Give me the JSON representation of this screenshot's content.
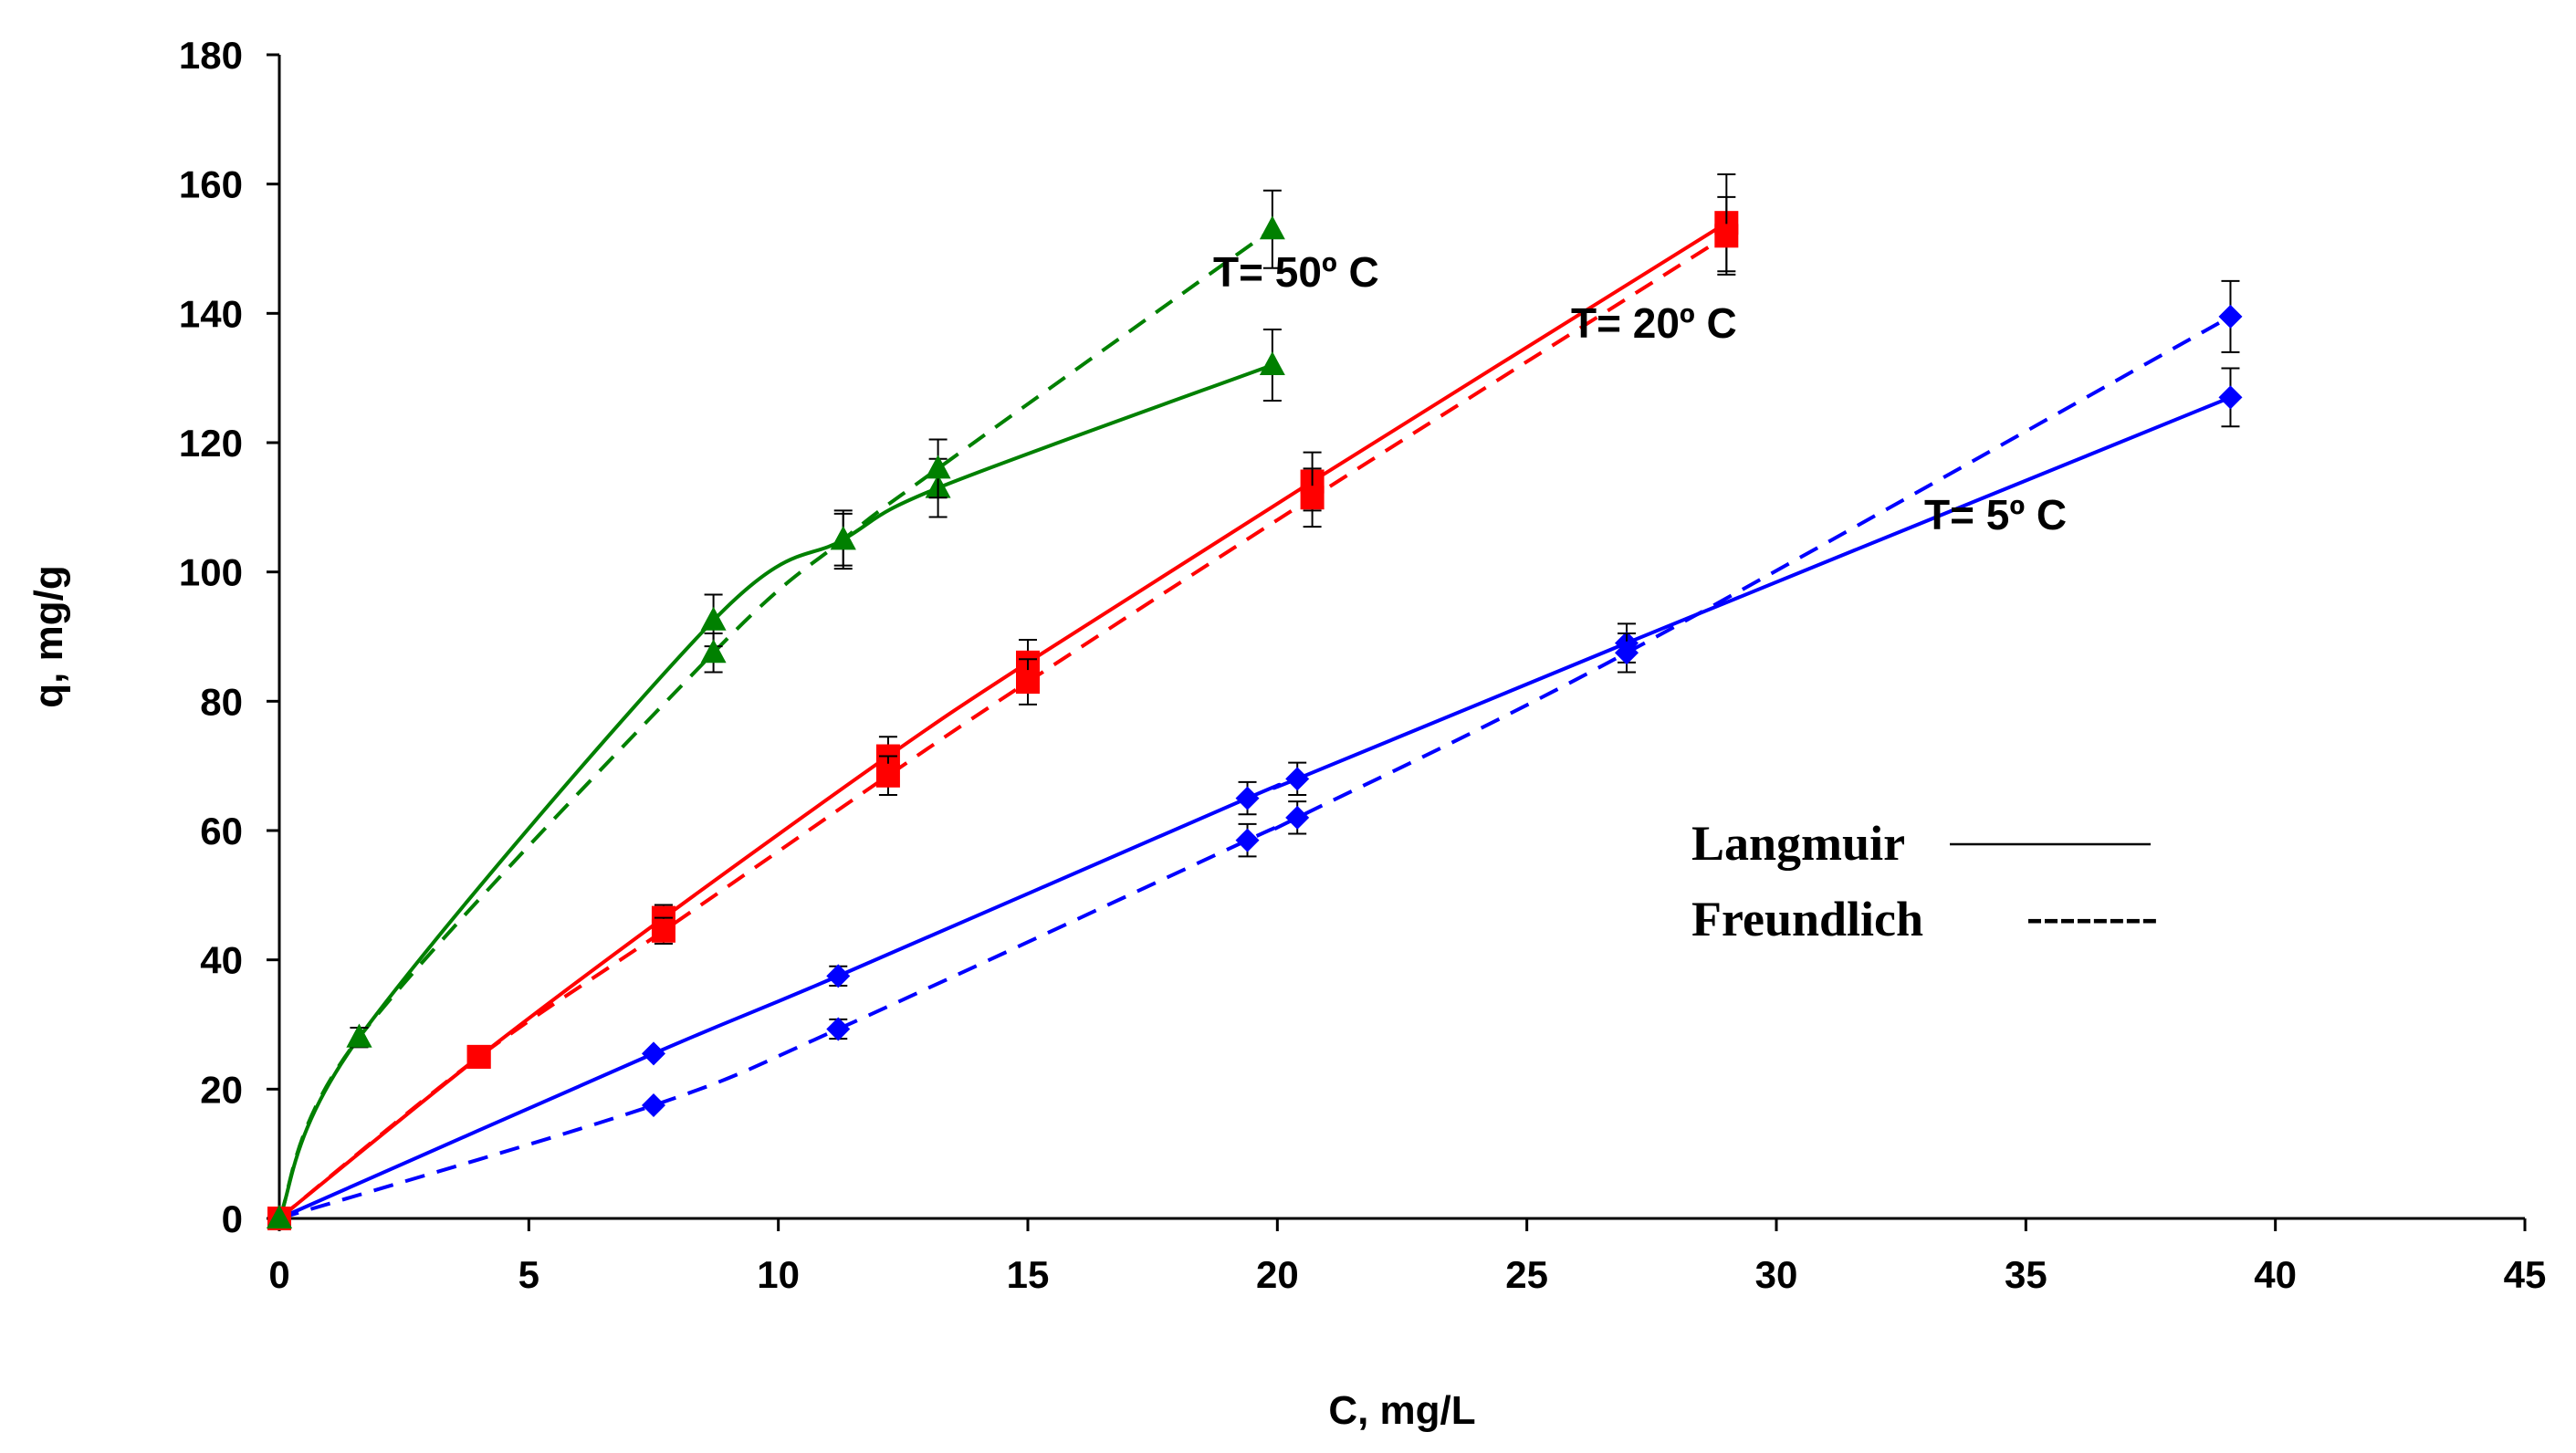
{
  "chart_data": {
    "type": "scatter",
    "title": "",
    "xlabel": "C, mg/L",
    "ylabel": "q, mg/g",
    "xlim": [
      0,
      45
    ],
    "ylim": [
      0,
      180
    ],
    "xticks": [
      0,
      5,
      10,
      15,
      20,
      25,
      30,
      35,
      40,
      45
    ],
    "yticks": [
      0,
      20,
      40,
      60,
      80,
      100,
      120,
      140,
      160,
      180
    ],
    "grid": false,
    "legend": [
      {
        "label": "Langmuir",
        "sample": "solid line"
      },
      {
        "label": "Freundlich",
        "sample": "--------"
      }
    ],
    "series": [
      {
        "name": "T= 5º C",
        "label": "T= 5º C",
        "color": "#0000ff",
        "marker": "diamond",
        "langmuir": {
          "points": [
            [
              0,
              0
            ],
            [
              7.5,
              25.5
            ],
            [
              11.2,
              37.5
            ],
            [
              19.4,
              65
            ],
            [
              20.4,
              68
            ],
            [
              27,
              89
            ],
            [
              39.1,
              127
            ]
          ],
          "errors": [
            0,
            0,
            1.5,
            2.5,
            2.5,
            3,
            4.5
          ]
        },
        "freundlich": {
          "points": [
            [
              0,
              0
            ],
            [
              7.5,
              17.5
            ],
            [
              11.2,
              29.3
            ],
            [
              19.4,
              58.5
            ],
            [
              20.4,
              62
            ],
            [
              27,
              87.5
            ],
            [
              39.1,
              139.5
            ]
          ],
          "errors": [
            0,
            0,
            1.5,
            2.5,
            2.5,
            3,
            5.5
          ]
        }
      },
      {
        "name": "T= 20º C",
        "label": "T= 20º C",
        "color": "#ff0000",
        "marker": "square",
        "langmuir": {
          "points": [
            [
              0,
              0
            ],
            [
              4,
              25
            ],
            [
              7.7,
              46.5
            ],
            [
              12.2,
              71.5
            ],
            [
              15,
              86
            ],
            [
              20.7,
              114
            ],
            [
              29,
              154
            ]
          ],
          "errors": [
            0,
            0,
            2,
            3,
            3.5,
            4.5,
            7.5
          ]
        },
        "freundlich": {
          "points": [
            [
              0,
              0
            ],
            [
              4,
              25
            ],
            [
              7.7,
              44.5
            ],
            [
              12.2,
              68.5
            ],
            [
              15,
              83
            ],
            [
              20.7,
              111.5
            ],
            [
              29,
              152
            ]
          ],
          "errors": [
            0,
            0,
            2,
            3,
            3.5,
            4.5,
            6
          ]
        }
      },
      {
        "name": "T= 50º C",
        "label": "T= 50º C",
        "color": "#008000",
        "marker": "triangle",
        "langmuir": {
          "points": [
            [
              0,
              0
            ],
            [
              1.6,
              28
            ],
            [
              8.7,
              92.5
            ],
            [
              11.3,
              105
            ],
            [
              13.2,
              113
            ],
            [
              19.9,
              132
            ]
          ],
          "errors": [
            0,
            1.5,
            4,
            4.5,
            4.5,
            5.5
          ]
        },
        "freundlich": {
          "points": [
            [
              0,
              0
            ],
            [
              1.6,
              28
            ],
            [
              8.7,
              87.5
            ],
            [
              11.3,
              105
            ],
            [
              13.2,
              116
            ],
            [
              19.9,
              153
            ]
          ],
          "errors": [
            0,
            1.5,
            3,
            4,
            4.5,
            6
          ]
        }
      }
    ]
  }
}
